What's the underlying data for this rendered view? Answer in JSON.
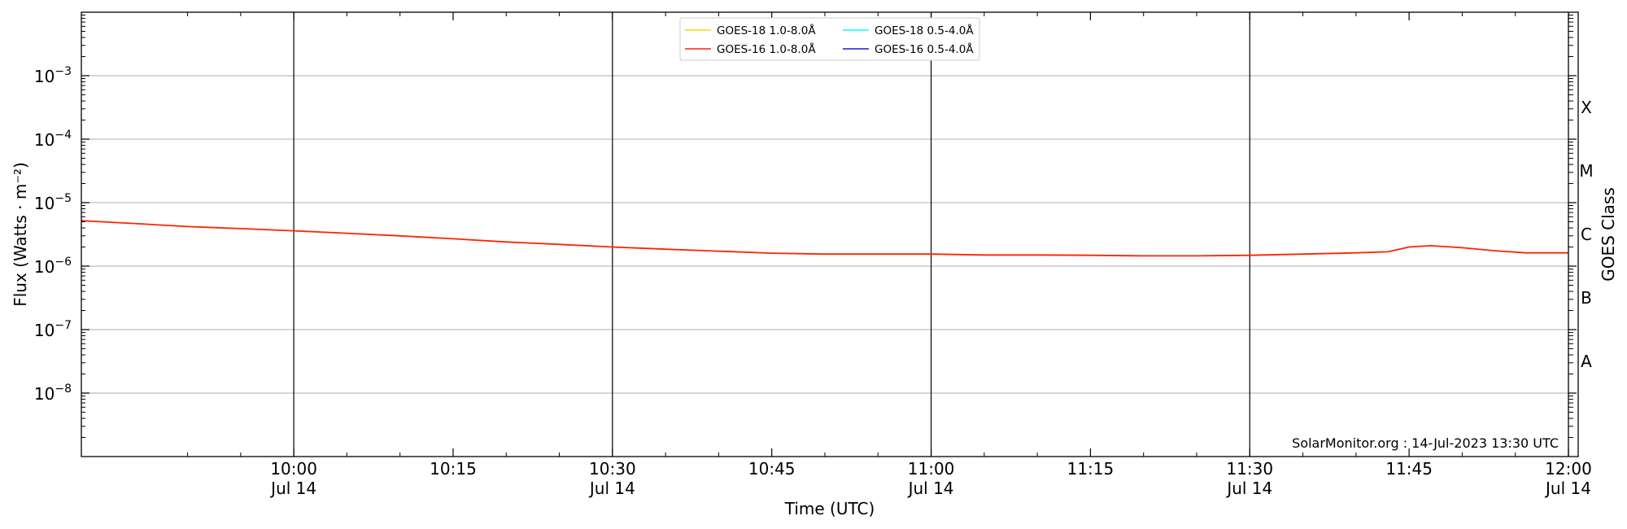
{
  "chart_data": {
    "type": "line",
    "xlabel": "Time (UTC)",
    "ylabel": "Flux (Watts · m⁻²)",
    "y2label": "GOES Class",
    "yscale": "log",
    "xlim": [
      "09:40",
      "12:00"
    ],
    "ylim": [
      1e-09,
      0.01
    ],
    "grid": "horizontal at decades; vertical lines at half hours",
    "legend_position": "top-center",
    "credit": "SolarMonitor.org : 14-Jul-2023 13:30 UTC",
    "x_ticks": [
      {
        "time": "10:00",
        "label": "10:00",
        "date": "Jul 14",
        "major": true
      },
      {
        "time": "10:15",
        "label": "10:15",
        "date": "",
        "major": false
      },
      {
        "time": "10:30",
        "label": "10:30",
        "date": "Jul 14",
        "major": true
      },
      {
        "time": "10:45",
        "label": "10:45",
        "date": "",
        "major": false
      },
      {
        "time": "11:00",
        "label": "11:00",
        "date": "Jul 14",
        "major": true
      },
      {
        "time": "11:15",
        "label": "11:15",
        "date": "",
        "major": false
      },
      {
        "time": "11:30",
        "label": "11:30",
        "date": "Jul 14",
        "major": true
      },
      {
        "time": "11:45",
        "label": "11:45",
        "date": "",
        "major": false
      },
      {
        "time": "12:00",
        "label": "12:00",
        "date": "Jul 14",
        "major": true
      }
    ],
    "y_ticks": [
      {
        "value": 1e-08,
        "base": "10",
        "exp": "−8"
      },
      {
        "value": 1e-07,
        "base": "10",
        "exp": "−7"
      },
      {
        "value": 1e-06,
        "base": "10",
        "exp": "−6"
      },
      {
        "value": 1e-05,
        "base": "10",
        "exp": "−5"
      },
      {
        "value": 0.0001,
        "base": "10",
        "exp": "−4"
      },
      {
        "value": 0.001,
        "base": "10",
        "exp": "−3"
      }
    ],
    "goes_classes": [
      {
        "label": "A",
        "value": 3.16e-08
      },
      {
        "label": "B",
        "value": 3.16e-07
      },
      {
        "label": "C",
        "value": 3.16e-06
      },
      {
        "label": "M",
        "value": 3.16e-05
      },
      {
        "label": "X",
        "value": 0.000316
      }
    ],
    "series": [
      {
        "name": "GOES-18 1.0-8.0Å",
        "color": "#ffd700",
        "points": []
      },
      {
        "name": "GOES-16 1.0-8.0Å",
        "color": "#ff2200",
        "points": [
          [
            "09:40",
            5.2e-06
          ],
          [
            "09:45",
            4.7e-06
          ],
          [
            "09:50",
            4.2e-06
          ],
          [
            "09:55",
            3.9e-06
          ],
          [
            "10:00",
            3.6e-06
          ],
          [
            "10:05",
            3.3e-06
          ],
          [
            "10:10",
            3e-06
          ],
          [
            "10:15",
            2.7e-06
          ],
          [
            "10:20",
            2.4e-06
          ],
          [
            "10:25",
            2.2e-06
          ],
          [
            "10:30",
            2e-06
          ],
          [
            "10:35",
            1.85e-06
          ],
          [
            "10:40",
            1.72e-06
          ],
          [
            "10:45",
            1.6e-06
          ],
          [
            "10:50",
            1.55e-06
          ],
          [
            "10:55",
            1.55e-06
          ],
          [
            "10:58",
            1.55e-06
          ],
          [
            "11:00",
            1.55e-06
          ],
          [
            "11:05",
            1.5e-06
          ],
          [
            "11:10",
            1.5e-06
          ],
          [
            "11:15",
            1.48e-06
          ],
          [
            "11:20",
            1.45e-06
          ],
          [
            "11:25",
            1.45e-06
          ],
          [
            "11:30",
            1.48e-06
          ],
          [
            "11:35",
            1.55e-06
          ],
          [
            "11:40",
            1.62e-06
          ],
          [
            "11:43",
            1.68e-06
          ],
          [
            "11:45",
            2e-06
          ],
          [
            "11:47",
            2.1e-06
          ],
          [
            "11:50",
            1.95e-06
          ],
          [
            "11:53",
            1.75e-06
          ],
          [
            "11:56",
            1.62e-06
          ],
          [
            "12:00",
            1.62e-06
          ]
        ]
      },
      {
        "name": "GOES-18 0.5-4.0Å",
        "color": "#00ffff",
        "points": []
      },
      {
        "name": "GOES-16 0.5-4.0Å",
        "color": "#1a1acc",
        "points": []
      }
    ]
  }
}
